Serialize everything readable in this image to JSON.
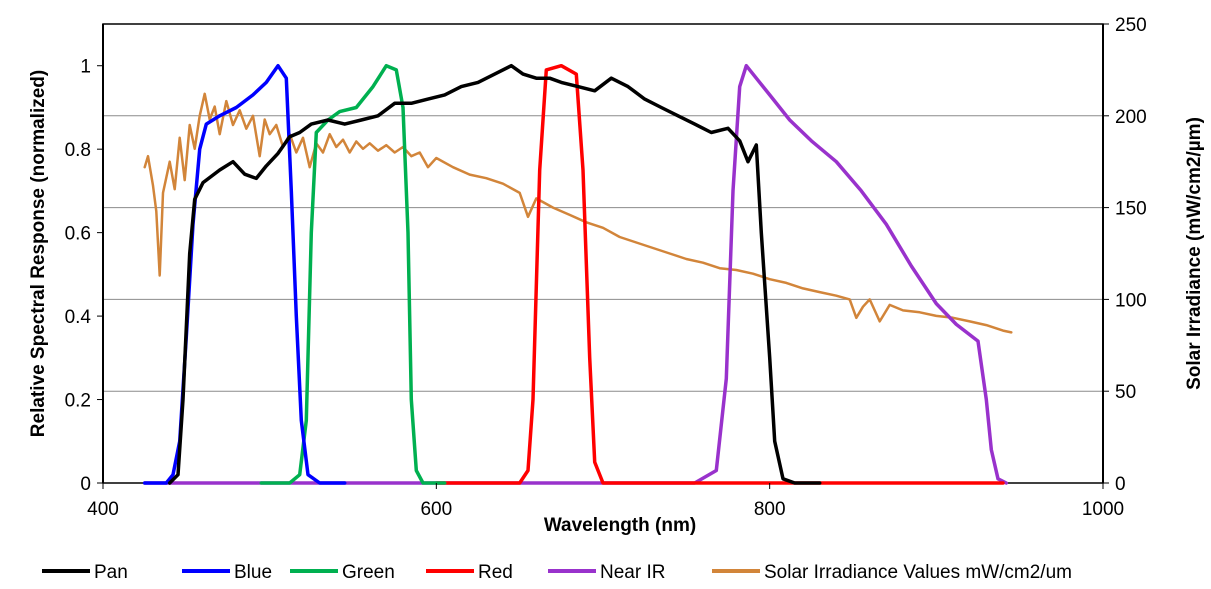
{
  "chart_data": {
    "type": "line",
    "xlabel": "Wavelength (nm)",
    "ylabel": "Relative Spectral Response (normalized)",
    "y2label": "Solar Irradiance (mW/cm2/µm)",
    "xlim": [
      400,
      1000
    ],
    "ylim": [
      0,
      1.1
    ],
    "y2lim": [
      0,
      250
    ],
    "xticks": [
      "400",
      "600",
      "800",
      "1000"
    ],
    "yticks": [
      "0",
      "0.2",
      "0.4",
      "0.6",
      "0.8",
      "1"
    ],
    "y2ticks": [
      "0",
      "50",
      "100",
      "150",
      "200",
      "250"
    ],
    "grid": true,
    "legend_position": "bottom",
    "series": [
      {
        "name": "Pan",
        "color": "#000000",
        "axis": "left",
        "points": [
          [
            440,
            0
          ],
          [
            445,
            0.02
          ],
          [
            448,
            0.2
          ],
          [
            452,
            0.55
          ],
          [
            455,
            0.68
          ],
          [
            460,
            0.72
          ],
          [
            470,
            0.75
          ],
          [
            478,
            0.77
          ],
          [
            485,
            0.74
          ],
          [
            492,
            0.73
          ],
          [
            498,
            0.76
          ],
          [
            505,
            0.79
          ],
          [
            512,
            0.83
          ],
          [
            518,
            0.84
          ],
          [
            525,
            0.86
          ],
          [
            535,
            0.87
          ],
          [
            545,
            0.86
          ],
          [
            555,
            0.87
          ],
          [
            565,
            0.88
          ],
          [
            575,
            0.91
          ],
          [
            585,
            0.91
          ],
          [
            595,
            0.92
          ],
          [
            605,
            0.93
          ],
          [
            615,
            0.95
          ],
          [
            625,
            0.96
          ],
          [
            635,
            0.98
          ],
          [
            645,
            1.0
          ],
          [
            652,
            0.98
          ],
          [
            660,
            0.97
          ],
          [
            668,
            0.97
          ],
          [
            675,
            0.96
          ],
          [
            685,
            0.95
          ],
          [
            695,
            0.94
          ],
          [
            705,
            0.97
          ],
          [
            715,
            0.95
          ],
          [
            725,
            0.92
          ],
          [
            735,
            0.9
          ],
          [
            745,
            0.88
          ],
          [
            755,
            0.86
          ],
          [
            765,
            0.84
          ],
          [
            775,
            0.85
          ],
          [
            782,
            0.82
          ],
          [
            787,
            0.77
          ],
          [
            792,
            0.81
          ],
          [
            795,
            0.6
          ],
          [
            800,
            0.3
          ],
          [
            803,
            0.1
          ],
          [
            808,
            0.01
          ],
          [
            815,
            0
          ],
          [
            830,
            0
          ]
        ]
      },
      {
        "name": "Blue",
        "color": "#0000ff",
        "axis": "left",
        "points": [
          [
            425,
            0
          ],
          [
            438,
            0
          ],
          [
            442,
            0.02
          ],
          [
            446,
            0.1
          ],
          [
            450,
            0.35
          ],
          [
            454,
            0.62
          ],
          [
            458,
            0.8
          ],
          [
            462,
            0.86
          ],
          [
            470,
            0.88
          ],
          [
            480,
            0.9
          ],
          [
            490,
            0.93
          ],
          [
            498,
            0.96
          ],
          [
            505,
            1.0
          ],
          [
            510,
            0.97
          ],
          [
            513,
            0.7
          ],
          [
            516,
            0.4
          ],
          [
            519,
            0.15
          ],
          [
            523,
            0.02
          ],
          [
            530,
            0
          ],
          [
            545,
            0
          ]
        ]
      },
      {
        "name": "Green",
        "color": "#00b050",
        "axis": "left",
        "points": [
          [
            495,
            0
          ],
          [
            512,
            0
          ],
          [
            518,
            0.02
          ],
          [
            522,
            0.15
          ],
          [
            525,
            0.6
          ],
          [
            528,
            0.84
          ],
          [
            535,
            0.87
          ],
          [
            542,
            0.89
          ],
          [
            552,
            0.9
          ],
          [
            562,
            0.95
          ],
          [
            570,
            1.0
          ],
          [
            576,
            0.99
          ],
          [
            580,
            0.9
          ],
          [
            583,
            0.6
          ],
          [
            585,
            0.2
          ],
          [
            588,
            0.03
          ],
          [
            592,
            0
          ],
          [
            605,
            0
          ]
        ]
      },
      {
        "name": "Red",
        "color": "#ff0000",
        "axis": "left",
        "points": [
          [
            600,
            0
          ],
          [
            650,
            0
          ],
          [
            655,
            0.03
          ],
          [
            658,
            0.2
          ],
          [
            662,
            0.75
          ],
          [
            666,
            0.99
          ],
          [
            675,
            1.0
          ],
          [
            684,
            0.98
          ],
          [
            688,
            0.75
          ],
          [
            692,
            0.3
          ],
          [
            695,
            0.05
          ],
          [
            700,
            0
          ],
          [
            780,
            0
          ],
          [
            940,
            0
          ]
        ]
      },
      {
        "name": "Near IR",
        "color": "#9932cc",
        "axis": "left",
        "points": [
          [
            425,
            0
          ],
          [
            755,
            0
          ],
          [
            768,
            0.03
          ],
          [
            774,
            0.25
          ],
          [
            778,
            0.7
          ],
          [
            782,
            0.95
          ],
          [
            786,
            1.0
          ],
          [
            792,
            0.97
          ],
          [
            800,
            0.93
          ],
          [
            812,
            0.87
          ],
          [
            825,
            0.82
          ],
          [
            840,
            0.77
          ],
          [
            855,
            0.7
          ],
          [
            870,
            0.62
          ],
          [
            885,
            0.52
          ],
          [
            900,
            0.43
          ],
          [
            912,
            0.38
          ],
          [
            925,
            0.34
          ],
          [
            930,
            0.2
          ],
          [
            933,
            0.08
          ],
          [
            937,
            0.01
          ],
          [
            942,
            0
          ]
        ]
      },
      {
        "name": "Solar Irradiance Values  mW/cm2/um",
        "color": "#d2853a",
        "axis": "right",
        "points": [
          [
            425,
            172
          ],
          [
            427,
            178
          ],
          [
            430,
            162
          ],
          [
            432,
            148
          ],
          [
            434,
            113
          ],
          [
            436,
            158
          ],
          [
            440,
            175
          ],
          [
            443,
            160
          ],
          [
            446,
            188
          ],
          [
            449,
            165
          ],
          [
            452,
            195
          ],
          [
            455,
            182
          ],
          [
            458,
            200
          ],
          [
            461,
            212
          ],
          [
            464,
            198
          ],
          [
            467,
            205
          ],
          [
            470,
            190
          ],
          [
            474,
            208
          ],
          [
            478,
            195
          ],
          [
            482,
            203
          ],
          [
            486,
            193
          ],
          [
            490,
            200
          ],
          [
            494,
            178
          ],
          [
            497,
            198
          ],
          [
            500,
            190
          ],
          [
            504,
            195
          ],
          [
            508,
            183
          ],
          [
            512,
            190
          ],
          [
            516,
            180
          ],
          [
            520,
            188
          ],
          [
            524,
            172
          ],
          [
            528,
            185
          ],
          [
            532,
            180
          ],
          [
            536,
            190
          ],
          [
            540,
            183
          ],
          [
            544,
            187
          ],
          [
            548,
            180
          ],
          [
            552,
            186
          ],
          [
            556,
            182
          ],
          [
            560,
            185
          ],
          [
            565,
            181
          ],
          [
            570,
            184
          ],
          [
            575,
            180
          ],
          [
            580,
            183
          ],
          [
            585,
            178
          ],
          [
            590,
            180
          ],
          [
            595,
            172
          ],
          [
            600,
            177
          ],
          [
            610,
            172
          ],
          [
            620,
            168
          ],
          [
            630,
            166
          ],
          [
            640,
            163
          ],
          [
            650,
            158
          ],
          [
            655,
            145
          ],
          [
            660,
            155
          ],
          [
            670,
            150
          ],
          [
            680,
            146
          ],
          [
            690,
            142
          ],
          [
            700,
            139
          ],
          [
            710,
            134
          ],
          [
            720,
            131
          ],
          [
            730,
            128
          ],
          [
            740,
            125
          ],
          [
            750,
            122
          ],
          [
            760,
            120
          ],
          [
            770,
            117
          ],
          [
            780,
            116
          ],
          [
            790,
            114
          ],
          [
            800,
            111
          ],
          [
            810,
            109
          ],
          [
            820,
            106
          ],
          [
            830,
            104
          ],
          [
            840,
            102
          ],
          [
            848,
            100
          ],
          [
            852,
            90
          ],
          [
            856,
            96
          ],
          [
            860,
            100
          ],
          [
            866,
            88
          ],
          [
            872,
            97
          ],
          [
            880,
            94
          ],
          [
            890,
            93
          ],
          [
            900,
            91
          ],
          [
            910,
            90
          ],
          [
            920,
            88
          ],
          [
            930,
            86
          ],
          [
            940,
            83
          ],
          [
            945,
            82
          ]
        ]
      }
    ]
  }
}
